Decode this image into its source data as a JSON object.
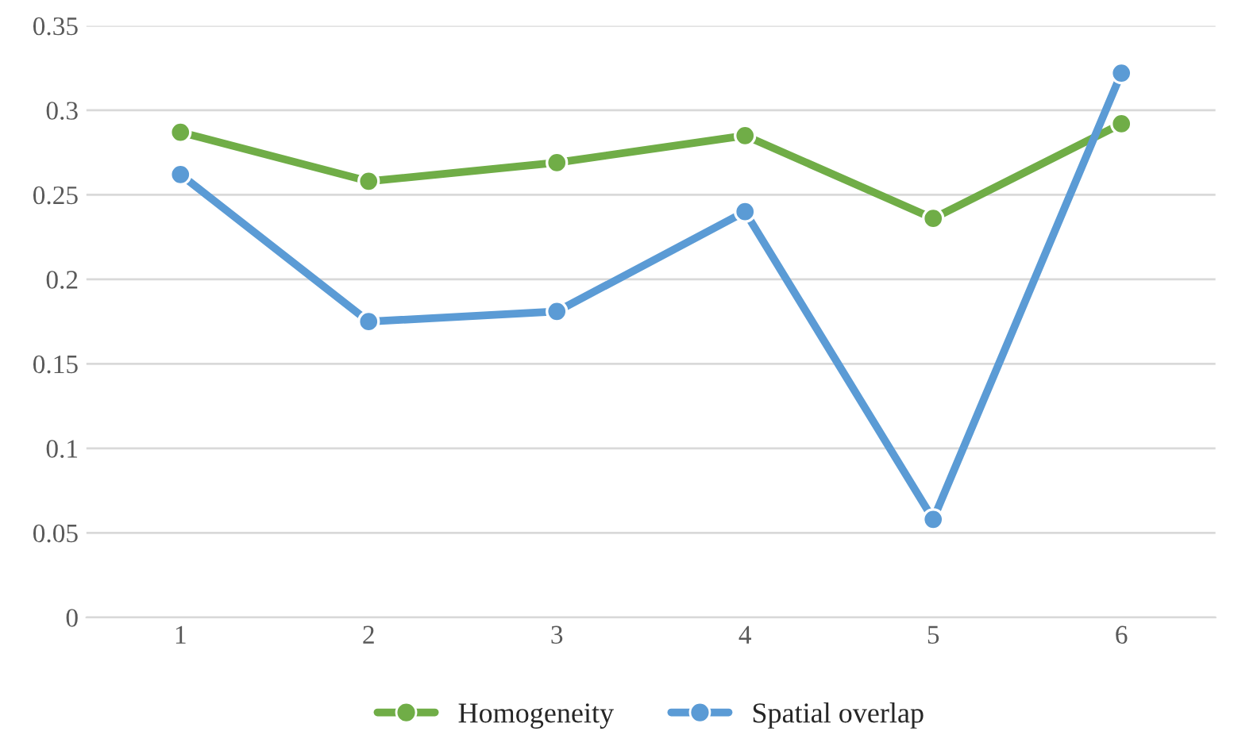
{
  "chart_data": {
    "type": "line",
    "categories": [
      "1",
      "2",
      "3",
      "4",
      "5",
      "6"
    ],
    "series": [
      {
        "name": "Homogeneity",
        "color": "#70ad47",
        "values": [
          0.287,
          0.258,
          0.269,
          0.285,
          0.236,
          0.292
        ]
      },
      {
        "name": "Spatial overlap",
        "color": "#5b9bd5",
        "values": [
          0.262,
          0.175,
          0.181,
          0.24,
          0.058,
          0.322
        ]
      }
    ],
    "ylim": [
      0,
      0.35
    ],
    "yticks": [
      0,
      0.05,
      0.1,
      0.15,
      0.2,
      0.25,
      0.3,
      0.35
    ],
    "grid": "y",
    "legend": "bottom",
    "marker": "circle",
    "line_style": "solid"
  }
}
